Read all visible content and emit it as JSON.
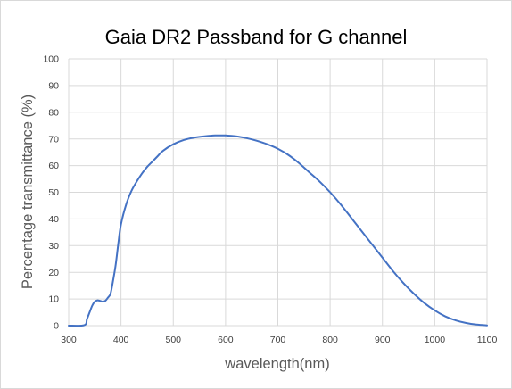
{
  "chart_data": {
    "type": "line",
    "title": "Gaia DR2 Passband for G channel",
    "xlabel": "wavelength(nm)",
    "ylabel": "Percentage transmittance (%)",
    "xlim": [
      300,
      1100
    ],
    "ylim": [
      0,
      100
    ],
    "x_ticks": [
      300,
      400,
      500,
      600,
      700,
      800,
      900,
      1000,
      1100
    ],
    "y_ticks": [
      0,
      10,
      20,
      30,
      40,
      50,
      60,
      70,
      80,
      90,
      100
    ],
    "grid": "on",
    "legend": "none",
    "series": [
      {
        "color": "#4472c4",
        "x": [
          300,
          330,
          335,
          340,
          345,
          350,
          355,
          360,
          365,
          370,
          375,
          380,
          385,
          390,
          395,
          400,
          410,
          420,
          430,
          440,
          450,
          460,
          470,
          480,
          500,
          520,
          540,
          560,
          580,
          600,
          620,
          640,
          660,
          680,
          700,
          720,
          740,
          760,
          780,
          800,
          820,
          840,
          860,
          880,
          900,
          920,
          940,
          960,
          980,
          1000,
          1020,
          1040,
          1060,
          1080,
          1100
        ],
        "values": [
          0,
          0.2,
          2.5,
          5.0,
          7.5,
          9.0,
          9.5,
          9.3,
          9.0,
          9.3,
          10.5,
          12.0,
          17.0,
          23.0,
          31.0,
          38.0,
          45.5,
          50.5,
          54.0,
          57.0,
          59.5,
          61.5,
          63.5,
          65.5,
          68.0,
          69.6,
          70.5,
          71.0,
          71.3,
          71.3,
          71.0,
          70.3,
          69.3,
          68.0,
          66.3,
          64.0,
          61.0,
          57.5,
          54.0,
          50.0,
          45.5,
          40.5,
          35.5,
          30.5,
          25.5,
          20.5,
          16.0,
          12.0,
          8.5,
          5.7,
          3.5,
          2.0,
          1.0,
          0.4,
          0.1
        ]
      }
    ]
  }
}
